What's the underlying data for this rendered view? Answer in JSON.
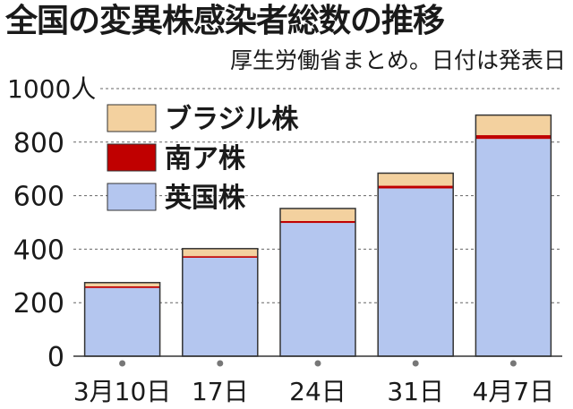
{
  "chart_data": {
    "type": "bar",
    "stacked": true,
    "title": "全国の変異株感染者総数の推移",
    "subtitle": "厚生労働省まとめ。日付は発表日",
    "ylabel": "",
    "y_top_label": "1000人",
    "ylim": [
      0,
      1000
    ],
    "yticks": [
      "0",
      "200",
      "400",
      "600",
      "800"
    ],
    "categories": [
      "3月10日",
      "17日",
      "24日",
      "31日",
      "4月7日"
    ],
    "series": [
      {
        "name": "英国株",
        "color": "#b4c6ef",
        "values": [
          255,
          368,
          498,
          627,
          812
        ]
      },
      {
        "name": "南ア株",
        "color": "#c00000",
        "values": [
          6,
          6,
          7,
          10,
          14
        ]
      },
      {
        "name": "ブラジル株",
        "color": "#f3d19f",
        "values": [
          14,
          28,
          47,
          47,
          75
        ]
      }
    ],
    "legend": {
      "placement": "top-left",
      "order": [
        "ブラジル株",
        "南ア株",
        "英国株"
      ]
    },
    "grid": "dashed-horizontal"
  }
}
